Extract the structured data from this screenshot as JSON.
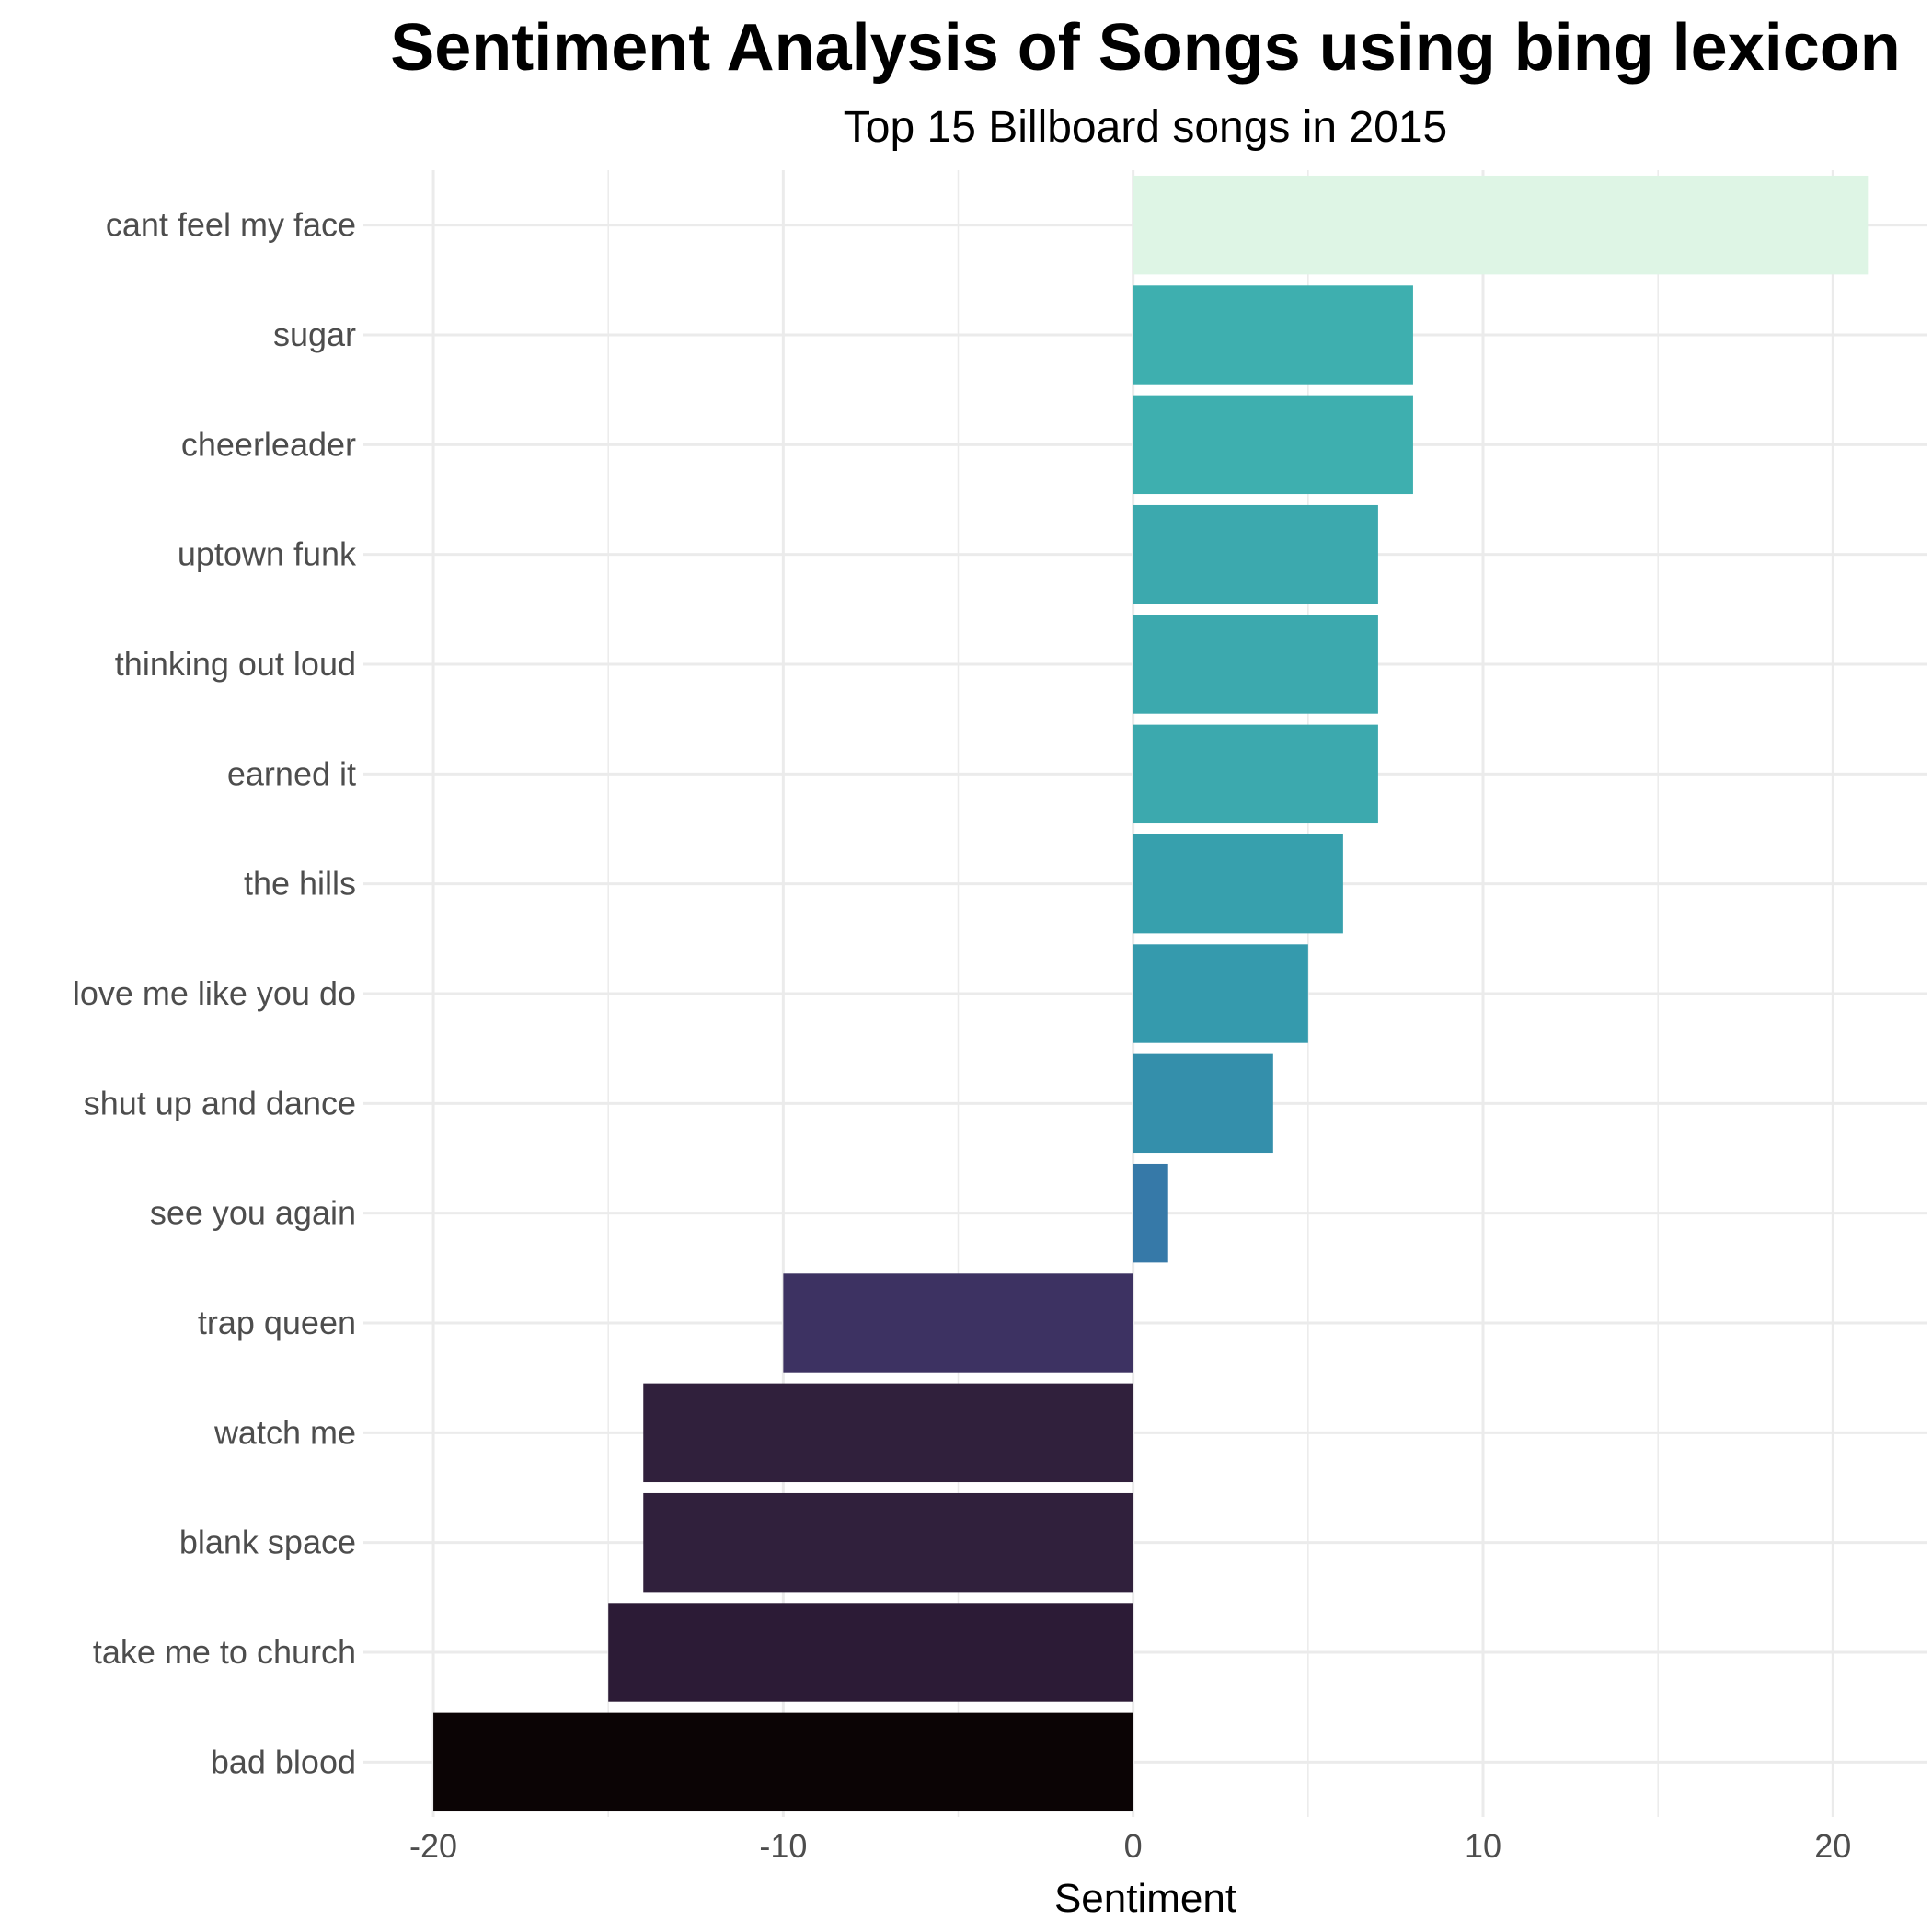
{
  "chart_data": {
    "type": "bar",
    "orientation": "horizontal",
    "title": "Sentiment Analysis of Songs using bing lexicon",
    "subtitle": "Top 15 Billboard songs in 2015",
    "xlabel": "Sentiment",
    "ylabel": "",
    "xlim": [
      -22,
      22.7
    ],
    "xticks": [
      -20,
      -10,
      0,
      10,
      20
    ],
    "grid": true,
    "legend": "none",
    "categories": [
      "cant feel my face",
      "sugar",
      "cheerleader",
      "uptown funk",
      "thinking out loud",
      "earned it",
      "the hills",
      "love me like you do",
      "shut up and dance",
      "see you again",
      "trap queen",
      "watch me",
      "blank space",
      "take me to church",
      "bad blood"
    ],
    "values": [
      21,
      8,
      8,
      7,
      7,
      7,
      6,
      5,
      4,
      1,
      -10,
      -14,
      -14,
      -15,
      -20
    ],
    "colors": [
      "#def5e5",
      "#3eafaf",
      "#3eafaf",
      "#3ca9ae",
      "#3ca9ae",
      "#3ca9ae",
      "#37a0ad",
      "#359aad",
      "#348fab",
      "#3679a8",
      "#3d3262",
      "#30203c",
      "#30203c",
      "#2c1b36",
      "#0b0405"
    ]
  }
}
